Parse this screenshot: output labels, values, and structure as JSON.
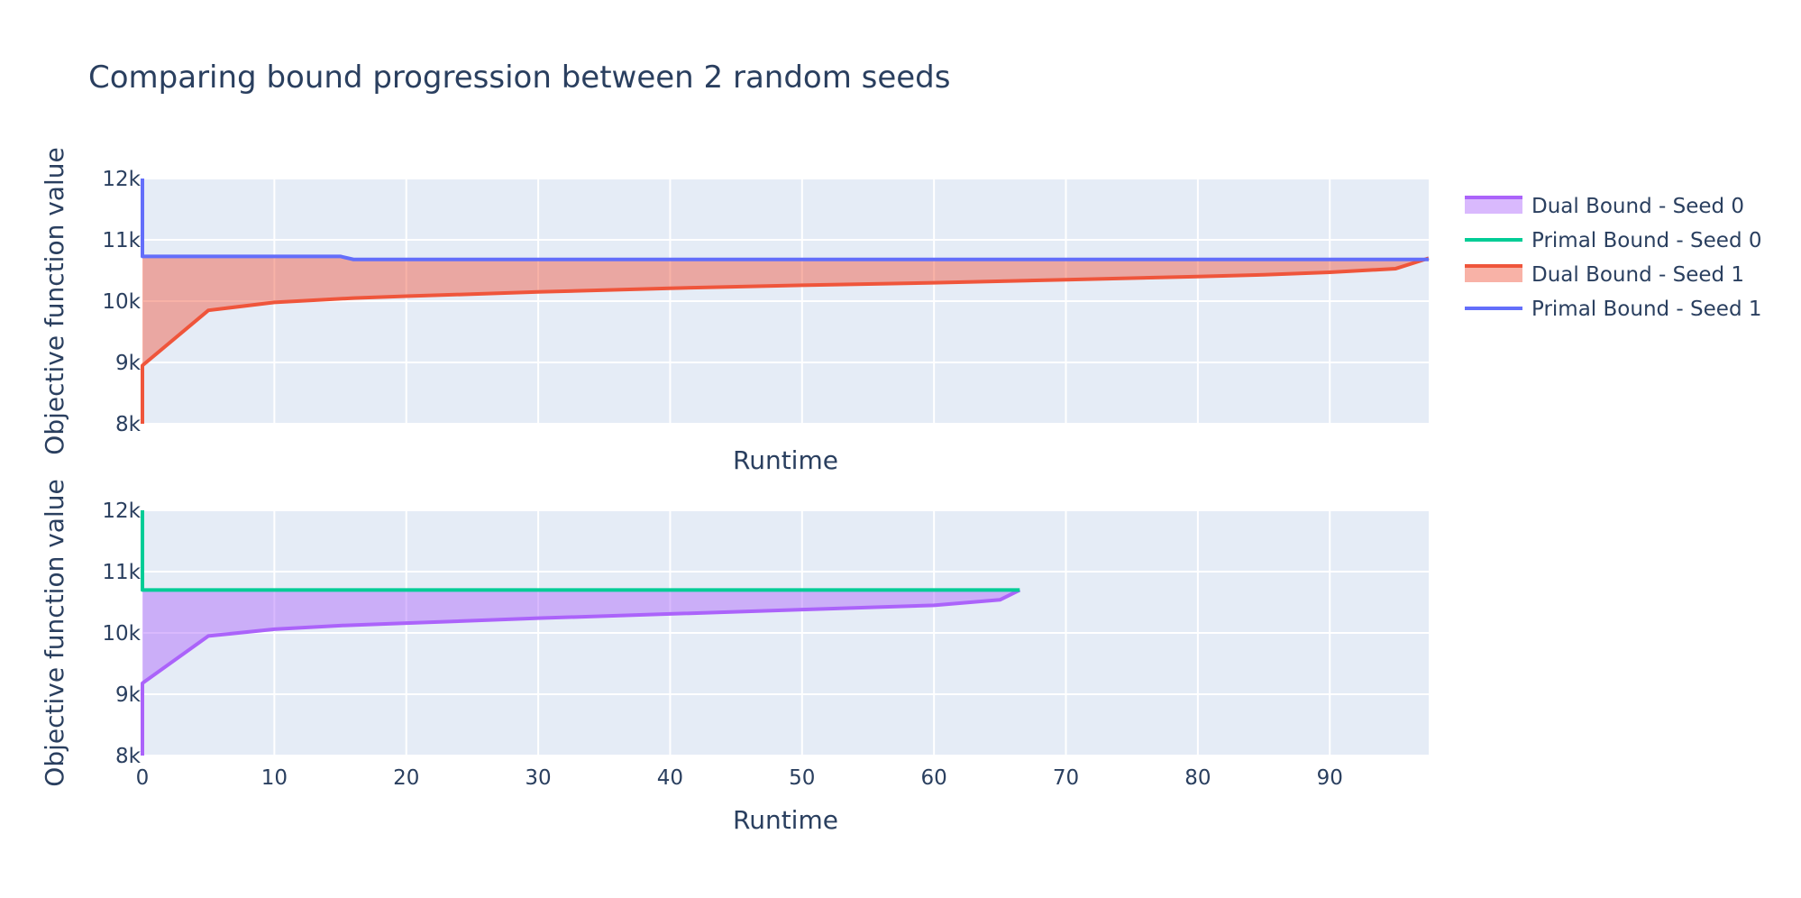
{
  "chart_data": {
    "type": "line",
    "title": "Comparing bound progression between 2 random seeds",
    "legend_position": "top-right",
    "colors": {
      "plot_bg": "#e5ecf6",
      "grid": "#ffffff",
      "text": "#2a3f5f"
    },
    "legend": [
      {
        "name": "Dual Bound - Seed 0",
        "color": "#ab63fa",
        "kind": "fill"
      },
      {
        "name": "Primal Bound - Seed 0",
        "color": "#00cc96",
        "kind": "line"
      },
      {
        "name": "Dual Bound - Seed 1",
        "color": "#ef553b",
        "kind": "fill"
      },
      {
        "name": "Primal Bound - Seed 1",
        "color": "#636efa",
        "kind": "line"
      }
    ],
    "subplots": [
      {
        "xlabel": "Runtime",
        "ylabel": "Objective function value",
        "xlim": [
          0,
          97.5
        ],
        "ylim": [
          8000,
          12000
        ],
        "show_x_ticks": false,
        "x_ticks": [
          0,
          10,
          20,
          30,
          40,
          50,
          60,
          70,
          80,
          90
        ],
        "x_tick_labels": [
          "0",
          "10",
          "20",
          "30",
          "40",
          "50",
          "60",
          "70",
          "80",
          "90"
        ],
        "y_ticks": [
          8000,
          9000,
          10000,
          11000,
          12000
        ],
        "y_tick_labels": [
          "8k",
          "9k",
          "10k",
          "11k",
          "12k"
        ],
        "series": [
          {
            "name": "Dual Bound - Seed 1",
            "color": "#ef553b",
            "fill_to": "Primal Bound - Seed 1",
            "fill_color": "rgba(239,85,59,0.45)",
            "x": [
              0,
              0,
              5,
              10,
              16,
              20,
              30,
              40,
              50,
              60,
              70,
              80,
              85,
              90,
              95,
              97.5
            ],
            "y": [
              8000,
              8950,
              9850,
              9980,
              10050,
              10080,
              10150,
              10210,
              10260,
              10300,
              10350,
              10400,
              10430,
              10470,
              10530,
              10700
            ]
          },
          {
            "name": "Primal Bound - Seed 1",
            "color": "#636efa",
            "x": [
              0,
              0,
              15,
              16,
              97.5
            ],
            "y": [
              12000,
              10730,
              10730,
              10680,
              10680
            ]
          }
        ]
      },
      {
        "xlabel": "Runtime",
        "ylabel": "Objective function value",
        "xlim": [
          0,
          97.5
        ],
        "ylim": [
          8000,
          12000
        ],
        "show_x_ticks": true,
        "x_ticks": [
          0,
          10,
          20,
          30,
          40,
          50,
          60,
          70,
          80,
          90
        ],
        "x_tick_labels": [
          "0",
          "10",
          "20",
          "30",
          "40",
          "50",
          "60",
          "70",
          "80",
          "90"
        ],
        "y_ticks": [
          8000,
          9000,
          10000,
          11000,
          12000
        ],
        "y_tick_labels": [
          "8k",
          "9k",
          "10k",
          "11k",
          "12k"
        ],
        "series": [
          {
            "name": "Dual Bound - Seed 0",
            "color": "#ab63fa",
            "fill_to": "Primal Bound - Seed 0",
            "fill_color": "rgba(171,99,250,0.45)",
            "x": [
              0,
              0,
              5,
              10,
              15,
              20,
              30,
              40,
              50,
              60,
              65,
              66.5
            ],
            "y": [
              8000,
              9180,
              9950,
              10060,
              10120,
              10160,
              10240,
              10310,
              10380,
              10450,
              10540,
              10700
            ]
          },
          {
            "name": "Primal Bound - Seed 0",
            "color": "#00cc96",
            "x": [
              0,
              0,
              66.5
            ],
            "y": [
              12000,
              10700,
              10700
            ]
          }
        ]
      }
    ]
  }
}
